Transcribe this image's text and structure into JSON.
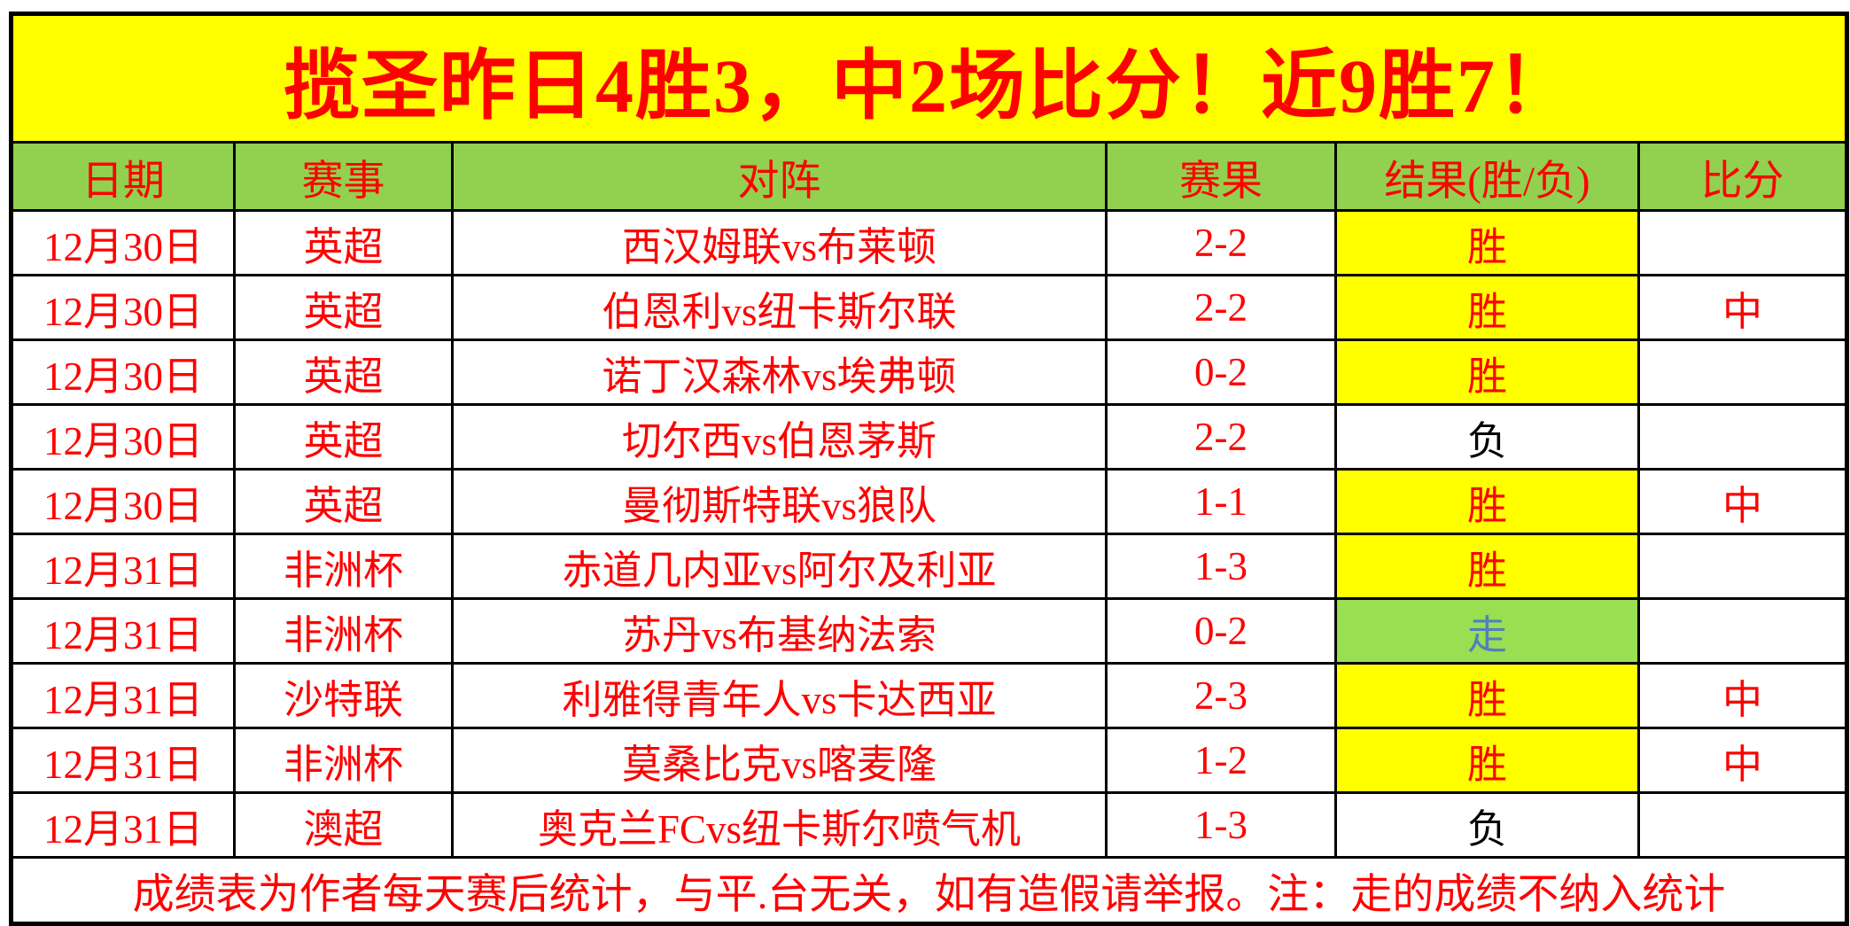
{
  "title": "揽圣昨日4胜3，中2场比分！近9胜7！",
  "columns": [
    "日期",
    "赛事",
    "对阵",
    "赛果",
    "结果(胜/负)",
    "比分"
  ],
  "rows": [
    {
      "date": "12月30日",
      "league": "英超",
      "match": "西汉姆联vs布莱顿",
      "score": "2-2",
      "result": "胜",
      "result_type": "win",
      "hit": ""
    },
    {
      "date": "12月30日",
      "league": "英超",
      "match": "伯恩利vs纽卡斯尔联",
      "score": "2-2",
      "result": "胜",
      "result_type": "win",
      "hit": "中"
    },
    {
      "date": "12月30日",
      "league": "英超",
      "match": "诺丁汉森林vs埃弗顿",
      "score": "0-2",
      "result": "胜",
      "result_type": "win",
      "hit": ""
    },
    {
      "date": "12月30日",
      "league": "英超",
      "match": "切尔西vs伯恩茅斯",
      "score": "2-2",
      "result": "负",
      "result_type": "loss",
      "hit": ""
    },
    {
      "date": "12月30日",
      "league": "英超",
      "match": "曼彻斯特联vs狼队",
      "score": "1-1",
      "result": "胜",
      "result_type": "win",
      "hit": "中"
    },
    {
      "date": "12月31日",
      "league": "非洲杯",
      "match": "赤道几内亚vs阿尔及利亚",
      "score": "1-3",
      "result": "胜",
      "result_type": "win",
      "hit": ""
    },
    {
      "date": "12月31日",
      "league": "非洲杯",
      "match": "苏丹vs布基纳法索",
      "score": "0-2",
      "result": "走",
      "result_type": "void",
      "hit": ""
    },
    {
      "date": "12月31日",
      "league": "沙特联",
      "match": "利雅得青年人vs卡达西亚",
      "score": "2-3",
      "result": "胜",
      "result_type": "win",
      "hit": "中"
    },
    {
      "date": "12月31日",
      "league": "非洲杯",
      "match": "莫桑比克vs喀麦隆",
      "score": "1-2",
      "result": "胜",
      "result_type": "win",
      "hit": "中"
    },
    {
      "date": "12月31日",
      "league": "澳超",
      "match": "奥克兰FCvs纽卡斯尔喷气机",
      "score": "1-3",
      "result": "负",
      "result_type": "loss",
      "hit": ""
    }
  ],
  "footer": "成绩表为作者每天赛后统计，与平.台无关，如有造假请举报。注：走的成绩不纳入统计",
  "colors": {
    "banner_bg": "#FFFF00",
    "banner_text": "#FF0000",
    "header_bg": "#92D050",
    "header_text": "#FF0000",
    "cell_text": "#FF0000",
    "win_bg": "#FFFF00",
    "win_text": "#FF0000",
    "loss_text": "#000000",
    "void_bg": "#9ADE52",
    "void_text": "#4F81BD",
    "border": "#000000"
  },
  "chart_data": {
    "type": "table",
    "title": "揽圣昨日4胜3，中2场比分！近9胜7！",
    "columns": [
      "日期",
      "赛事",
      "对阵",
      "赛果",
      "结果(胜/负)",
      "比分"
    ],
    "records": [
      [
        "12月30日",
        "英超",
        "西汉姆联vs布莱顿",
        "2-2",
        "胜",
        ""
      ],
      [
        "12月30日",
        "英超",
        "伯恩利vs纽卡斯尔联",
        "2-2",
        "胜",
        "中"
      ],
      [
        "12月30日",
        "英超",
        "诺丁汉森林vs埃弗顿",
        "0-2",
        "胜",
        ""
      ],
      [
        "12月30日",
        "英超",
        "切尔西vs伯恩茅斯",
        "2-2",
        "负",
        ""
      ],
      [
        "12月30日",
        "英超",
        "曼彻斯特联vs狼队",
        "1-1",
        "胜",
        "中"
      ],
      [
        "12月31日",
        "非洲杯",
        "赤道几内亚vs阿尔及利亚",
        "1-3",
        "胜",
        ""
      ],
      [
        "12月31日",
        "非洲杯",
        "苏丹vs布基纳法索",
        "0-2",
        "走",
        ""
      ],
      [
        "12月31日",
        "沙特联",
        "利雅得青年人vs卡达西亚",
        "2-3",
        "胜",
        "中"
      ],
      [
        "12月31日",
        "非洲杯",
        "莫桑比克vs喀麦隆",
        "1-2",
        "胜",
        "中"
      ],
      [
        "12月31日",
        "澳超",
        "奥克兰FCvs纽卡斯尔喷气机",
        "1-3",
        "负",
        ""
      ]
    ]
  }
}
